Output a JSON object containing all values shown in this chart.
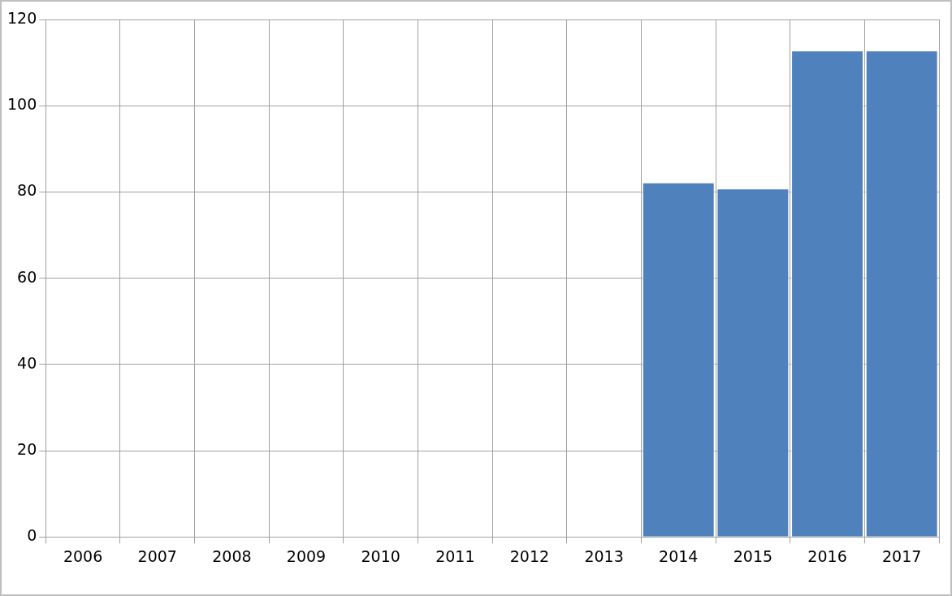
{
  "chart_data": {
    "type": "bar",
    "categories": [
      "2006",
      "2007",
      "2008",
      "2009",
      "2010",
      "2011",
      "2012",
      "2013",
      "2014",
      "2015",
      "2016",
      "2017"
    ],
    "values": [
      null,
      null,
      null,
      null,
      null,
      null,
      null,
      null,
      82.2,
      80.8,
      112.8,
      112.8
    ],
    "color": "#4f81bd",
    "ylim": [
      0,
      120
    ],
    "yticks": [
      0,
      20,
      40,
      60,
      80,
      100,
      120
    ],
    "grid": true
  }
}
